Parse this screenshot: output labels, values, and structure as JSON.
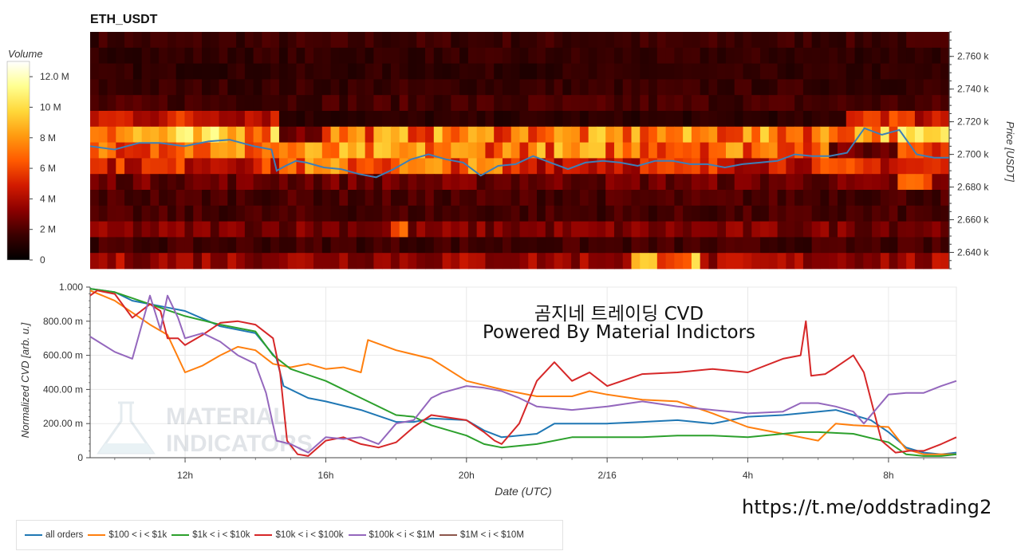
{
  "chart_data": [
    {
      "type": "heatmap",
      "title": "ETH_USDT",
      "ylabel": "Price [USDT]",
      "ylim": [
        2630,
        2775
      ],
      "y_ticks": [
        2640,
        2660,
        2680,
        2700,
        2720,
        2740,
        2760
      ],
      "y_tick_labels": [
        "2.640 k",
        "2.660 k",
        "2.680 k",
        "2.700 k",
        "2.720 k",
        "2.740 k",
        "2.760 k"
      ],
      "colorbar": {
        "label": "Volume",
        "range": [
          0,
          13000000
        ],
        "ticks": [
          0,
          2000000,
          4000000,
          6000000,
          8000000,
          10000000,
          12000000
        ],
        "tick_labels": [
          "0",
          "2 M",
          "4 M",
          "6 M",
          "8 M",
          "10 M",
          "12.0 M"
        ],
        "colors": [
          "#000000",
          "#3a0000",
          "#8b0000",
          "#d21a00",
          "#ff5a00",
          "#ff9a10",
          "#ffd83a",
          "#ffff90",
          "#ffffff"
        ]
      },
      "price_line": {
        "color": "#3d7fb8",
        "t": [
          9.3,
          10.0,
          10.7,
          11.3,
          12.0,
          12.7,
          13.3,
          14.0,
          14.5,
          14.65,
          14.9,
          15.2,
          15.5,
          16.0,
          16.5,
          17.0,
          17.5,
          18.0,
          18.5,
          19.0,
          19.5,
          20.0,
          20.5,
          21.0,
          21.5,
          22.0,
          22.5,
          23.0,
          23.5,
          24.0,
          24.5,
          25.0,
          25.5,
          26.0,
          26.5,
          27.0,
          27.5,
          28.0,
          28.5,
          29.0,
          29.5,
          30.0,
          30.5,
          31.0,
          31.5,
          32.0,
          32.5,
          33.0,
          33.5,
          33.93
        ],
        "price": [
          2705,
          2703,
          2707,
          2707,
          2705,
          2708,
          2709,
          2705,
          2703,
          2690,
          2693,
          2696,
          2695,
          2692,
          2691,
          2688,
          2686,
          2691,
          2697,
          2700,
          2697,
          2695,
          2687,
          2693,
          2694,
          2699,
          2695,
          2691,
          2695,
          2696,
          2695,
          2693,
          2696,
          2696,
          2694,
          2694,
          2692,
          2694,
          2695,
          2696,
          2700,
          2699,
          2699,
          2701,
          2716,
          2712,
          2715,
          2700,
          2698,
          2698
        ]
      },
      "heat_rows": [
        {
          "p": 2770,
          "v": 1.6
        },
        {
          "p": 2760,
          "v": 1.4
        },
        {
          "p": 2750,
          "v": 1.3
        },
        {
          "p": 2740,
          "v": 1.5
        },
        {
          "p": 2730,
          "v": 1.8
        },
        {
          "p": 2720,
          "v": 4.8
        },
        {
          "p": 2710,
          "v": 8.5
        },
        {
          "p": 2700,
          "v": 7.2
        },
        {
          "p": 2690,
          "v": 5.0
        },
        {
          "p": 2680,
          "v": 2.6
        },
        {
          "p": 2670,
          "v": 1.9
        },
        {
          "p": 2660,
          "v": 1.8
        },
        {
          "p": 2650,
          "v": 2.9
        },
        {
          "p": 2640,
          "v": 1.7
        },
        {
          "p": 2633,
          "v": 3.6
        }
      ]
    },
    {
      "type": "line",
      "xlabel": "Date (UTC)",
      "ylabel": "Normalized CVD [arb. u.]",
      "ylim": [
        0,
        1
      ],
      "xlim": [
        9.3,
        33.93
      ],
      "y_ticks": [
        0,
        0.2,
        0.4,
        0.6,
        0.8,
        1.0
      ],
      "y_tick_labels": [
        "0",
        "200.00 m",
        "400.00 m",
        "600.00 m",
        "800.00 m",
        "1.000"
      ],
      "x_ticks": [
        12,
        16,
        20,
        24,
        28,
        32
      ],
      "x_tick_labels": [
        "12h",
        "16h",
        "20h",
        "2/16",
        "4h",
        "8h"
      ],
      "grid": true,
      "annotations": [
        "곰지네 트레이딩 CVD",
        "Powered By Material Indictors"
      ],
      "watermark": "MATERIAL INDICATORS",
      "legend_position": "bottom",
      "series": [
        {
          "name": "all orders",
          "color": "#1f77b4",
          "x": [
            9.3,
            10.0,
            10.5,
            11.0,
            11.5,
            12.0,
            13.0,
            14.0,
            14.6,
            14.8,
            15.5,
            16.0,
            17.0,
            18.0,
            18.5,
            19.0,
            20.0,
            20.5,
            21.0,
            22.0,
            22.5,
            24.0,
            25.0,
            26.0,
            27.0,
            28.0,
            29.0,
            29.5,
            30.5,
            31.0,
            31.5,
            32.0,
            32.5,
            33.0,
            33.5,
            33.93
          ],
          "y": [
            0.99,
            0.97,
            0.92,
            0.9,
            0.88,
            0.86,
            0.77,
            0.73,
            0.58,
            0.42,
            0.35,
            0.33,
            0.28,
            0.21,
            0.21,
            0.23,
            0.22,
            0.16,
            0.12,
            0.14,
            0.2,
            0.2,
            0.21,
            0.22,
            0.2,
            0.24,
            0.25,
            0.26,
            0.28,
            0.25,
            0.22,
            0.15,
            0.06,
            0.03,
            0.02,
            0.03
          ]
        },
        {
          "name": "$100 < i < $1k",
          "color": "#ff7f0e",
          "x": [
            9.3,
            10.0,
            11.0,
            11.5,
            12.0,
            12.5,
            13.0,
            13.5,
            14.0,
            14.5,
            15.0,
            15.5,
            16.0,
            16.5,
            17.0,
            17.2,
            18.0,
            19.0,
            20.0,
            21.0,
            22.0,
            23.0,
            23.5,
            24.0,
            25.0,
            26.0,
            27.0,
            28.0,
            29.0,
            30.0,
            30.5,
            31.0,
            32.0,
            32.5,
            33.0,
            33.5,
            33.93
          ],
          "y": [
            0.98,
            0.92,
            0.78,
            0.72,
            0.5,
            0.54,
            0.6,
            0.65,
            0.63,
            0.55,
            0.53,
            0.55,
            0.52,
            0.53,
            0.5,
            0.69,
            0.63,
            0.58,
            0.45,
            0.4,
            0.36,
            0.36,
            0.39,
            0.37,
            0.34,
            0.33,
            0.26,
            0.18,
            0.14,
            0.1,
            0.2,
            0.19,
            0.18,
            0.05,
            0.02,
            0.02,
            0.02
          ]
        },
        {
          "name": "$1k < i < $10k",
          "color": "#2ca02c",
          "x": [
            9.3,
            10.0,
            11.0,
            12.0,
            13.0,
            14.0,
            14.5,
            15.0,
            16.0,
            17.0,
            18.0,
            18.5,
            19.0,
            20.0,
            20.5,
            21.0,
            22.0,
            23.0,
            24.0,
            25.0,
            26.0,
            27.0,
            28.0,
            29.0,
            29.5,
            30.0,
            31.0,
            32.0,
            32.5,
            33.0,
            33.5,
            33.93
          ],
          "y": [
            0.99,
            0.97,
            0.9,
            0.83,
            0.78,
            0.74,
            0.6,
            0.52,
            0.45,
            0.35,
            0.25,
            0.24,
            0.19,
            0.13,
            0.08,
            0.06,
            0.08,
            0.12,
            0.12,
            0.12,
            0.13,
            0.13,
            0.12,
            0.14,
            0.15,
            0.15,
            0.14,
            0.09,
            0.02,
            0.01,
            0.01,
            0.02
          ]
        },
        {
          "name": "$10k < i < $100k",
          "color": "#d62728",
          "x": [
            9.3,
            9.5,
            10.0,
            10.5,
            11.0,
            11.3,
            11.5,
            11.8,
            12.0,
            12.5,
            13.0,
            13.5,
            14.0,
            14.5,
            14.7,
            14.9,
            15.2,
            15.5,
            16.0,
            16.5,
            17.0,
            17.5,
            18.0,
            18.5,
            19.0,
            20.0,
            20.5,
            20.8,
            21.0,
            21.5,
            22.0,
            22.5,
            23.0,
            23.5,
            24.0,
            25.0,
            26.0,
            27.0,
            28.0,
            29.0,
            29.5,
            29.65,
            29.8,
            30.2,
            30.5,
            31.0,
            31.3,
            31.8,
            32.2,
            32.6,
            33.0,
            33.5,
            33.93
          ],
          "y": [
            0.95,
            0.98,
            0.96,
            0.82,
            0.9,
            0.86,
            0.7,
            0.7,
            0.66,
            0.72,
            0.79,
            0.8,
            0.78,
            0.7,
            0.5,
            0.1,
            0.02,
            0.01,
            0.1,
            0.12,
            0.08,
            0.06,
            0.09,
            0.18,
            0.25,
            0.22,
            0.15,
            0.1,
            0.08,
            0.2,
            0.45,
            0.56,
            0.45,
            0.5,
            0.42,
            0.49,
            0.5,
            0.52,
            0.5,
            0.58,
            0.6,
            0.8,
            0.48,
            0.49,
            0.53,
            0.6,
            0.5,
            0.1,
            0.03,
            0.04,
            0.04,
            0.08,
            0.12
          ]
        },
        {
          "name": "$100k < i < $1M",
          "color": "#9467bd",
          "x": [
            9.3,
            10.0,
            10.5,
            11.0,
            11.3,
            11.5,
            11.8,
            12.0,
            12.5,
            13.0,
            13.5,
            14.0,
            14.3,
            14.6,
            15.0,
            15.5,
            16.0,
            16.5,
            17.0,
            17.5,
            18.0,
            18.5,
            19.0,
            19.3,
            20.0,
            20.5,
            21.0,
            21.5,
            22.0,
            23.0,
            24.0,
            25.0,
            26.0,
            27.0,
            28.0,
            29.0,
            29.5,
            30.0,
            30.5,
            31.0,
            31.3,
            32.0,
            32.5,
            33.0,
            33.5,
            33.93
          ],
          "y": [
            0.71,
            0.62,
            0.58,
            0.95,
            0.75,
            0.95,
            0.82,
            0.7,
            0.73,
            0.68,
            0.6,
            0.55,
            0.38,
            0.1,
            0.08,
            0.03,
            0.12,
            0.11,
            0.12,
            0.08,
            0.2,
            0.22,
            0.35,
            0.38,
            0.42,
            0.41,
            0.39,
            0.35,
            0.3,
            0.28,
            0.3,
            0.33,
            0.3,
            0.28,
            0.26,
            0.27,
            0.32,
            0.32,
            0.3,
            0.27,
            0.2,
            0.37,
            0.38,
            0.38,
            0.42,
            0.45
          ]
        },
        {
          "name": "$1M < i < $10M",
          "color": "#8c564b",
          "x": [],
          "y": []
        }
      ]
    }
  ],
  "overlay": {
    "cvd_title": "곰지네 트레이딩 CVD",
    "cvd_subtitle": "Powered By Material Indictors",
    "watermark_line1": "MATERIAL",
    "watermark_line2": "INDICATORS",
    "link": "https://t.me/oddstrading2"
  }
}
